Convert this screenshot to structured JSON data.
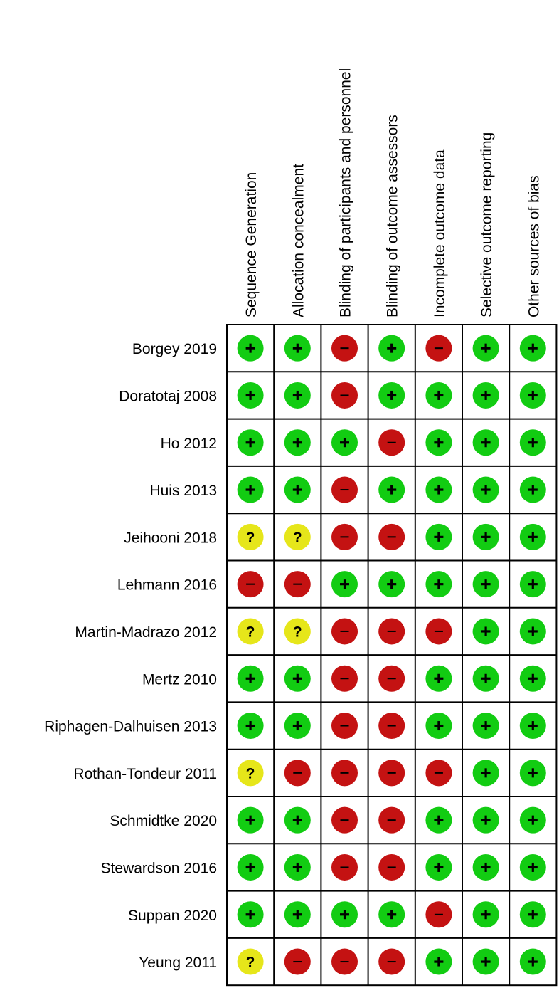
{
  "chart_data": {
    "type": "table",
    "columns": [
      "Sequence Generation",
      "Allocation concealment",
      "Blinding of participants and personnel",
      "Blinding of outcome assessors",
      "Incomplete outcome data",
      "Selective outcome reporting",
      "Other sources of bias"
    ],
    "rows": [
      {
        "study": "Borgey 2019",
        "ratings": [
          "+",
          "+",
          "-",
          "+",
          "-",
          "+",
          "+"
        ]
      },
      {
        "study": "Doratotaj 2008",
        "ratings": [
          "+",
          "+",
          "-",
          "+",
          "+",
          "+",
          "+"
        ]
      },
      {
        "study": "Ho 2012",
        "ratings": [
          "+",
          "+",
          "+",
          "-",
          "+",
          "+",
          "+"
        ]
      },
      {
        "study": "Huis 2013",
        "ratings": [
          "+",
          "+",
          "-",
          "+",
          "+",
          "+",
          "+"
        ]
      },
      {
        "study": "Jeihooni 2018",
        "ratings": [
          "?",
          "?",
          "-",
          "-",
          "+",
          "+",
          "+"
        ]
      },
      {
        "study": "Lehmann 2016",
        "ratings": [
          "-",
          "-",
          "+",
          "+",
          "+",
          "+",
          "+"
        ]
      },
      {
        "study": "Martin-Madrazo 2012",
        "ratings": [
          "?",
          "?",
          "-",
          "-",
          "-",
          "+",
          "+"
        ]
      },
      {
        "study": "Mertz 2010",
        "ratings": [
          "+",
          "+",
          "-",
          "-",
          "+",
          "+",
          "+"
        ]
      },
      {
        "study": "Riphagen-Dalhuisen 2013",
        "ratings": [
          "+",
          "+",
          "-",
          "-",
          "+",
          "+",
          "+"
        ]
      },
      {
        "study": "Rothan-Tondeur 2011",
        "ratings": [
          "?",
          "-",
          "-",
          "-",
          "-",
          "+",
          "+"
        ]
      },
      {
        "study": "Schmidtke 2020",
        "ratings": [
          "+",
          "+",
          "-",
          "-",
          "+",
          "+",
          "+"
        ]
      },
      {
        "study": "Stewardson 2016",
        "ratings": [
          "+",
          "+",
          "-",
          "-",
          "+",
          "+",
          "+"
        ]
      },
      {
        "study": "Suppan 2020",
        "ratings": [
          "+",
          "+",
          "+",
          "+",
          "-",
          "+",
          "+"
        ]
      },
      {
        "study": "Yeung 2011",
        "ratings": [
          "?",
          "-",
          "-",
          "-",
          "+",
          "+",
          "+"
        ]
      }
    ],
    "legend_colors": {
      "+": "#12cc12",
      "-": "#c41212",
      "?": "#e6e61a"
    }
  }
}
